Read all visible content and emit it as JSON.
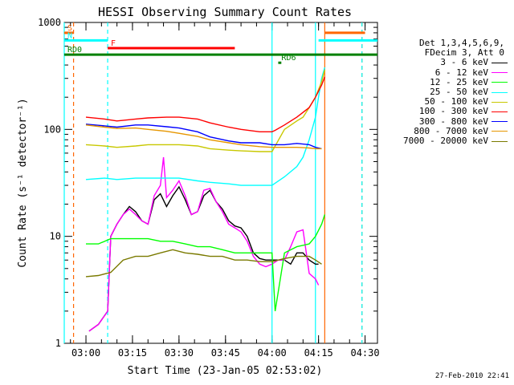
{
  "chart_data": {
    "type": "line",
    "title": "HESSI Observing Summary Count Rates",
    "xlabel": "Start Time (23-Jan-05 02:53:02)",
    "ylabel": "Count Rate (s⁻¹ detector⁻¹)",
    "y_scale": "log",
    "ylim": [
      1,
      1000
    ],
    "xlim": [
      "02:53",
      "04:34"
    ],
    "x_ticks": [
      "03:00",
      "03:15",
      "03:30",
      "03:45",
      "04:00",
      "04:15",
      "04:30"
    ],
    "y_ticks": [
      "1",
      "10",
      "100",
      "1000"
    ],
    "grid": false,
    "legend_position": "right",
    "legend_header": [
      "Det 1,3,4,5,6,9,",
      "FDecim 3, Att 0"
    ],
    "series": [
      {
        "name": "3 - 6 keV",
        "color": "#000000",
        "x": [
          "03:01",
          "03:04",
          "03:07",
          "03:08",
          "03:10",
          "03:12",
          "03:14",
          "03:16",
          "03:18",
          "03:20",
          "03:22",
          "03:24",
          "03:26",
          "03:28",
          "03:30",
          "03:32",
          "03:34",
          "03:36",
          "03:38",
          "03:40",
          "03:42",
          "03:44",
          "03:46",
          "03:48",
          "03:50",
          "03:52",
          "03:54",
          "03:56",
          "03:58",
          "04:00",
          "04:02",
          "04:04",
          "04:06",
          "04:08",
          "04:10",
          "04:12",
          "04:14",
          "04:15"
        ],
        "y": [
          1.3,
          1.5,
          2.0,
          10,
          13,
          16,
          19,
          17,
          14,
          13,
          22,
          25,
          19,
          24,
          29,
          22,
          16,
          17,
          24,
          27,
          21,
          18,
          14,
          12.5,
          12,
          10,
          7,
          6.2,
          6.0,
          6.0,
          6.0,
          6.0,
          5.5,
          7,
          7,
          6.0,
          5.5,
          5.5
        ]
      },
      {
        "name": "6 - 12 keV",
        "color": "#ff00ff",
        "x": [
          "03:01",
          "03:04",
          "03:07",
          "03:08",
          "03:10",
          "03:12",
          "03:14",
          "03:16",
          "03:18",
          "03:20",
          "03:22",
          "03:24",
          "03:25",
          "03:26",
          "03:28",
          "03:30",
          "03:32",
          "03:34",
          "03:36",
          "03:38",
          "03:40",
          "03:42",
          "03:44",
          "03:46",
          "03:48",
          "03:50",
          "03:52",
          "03:54",
          "03:56",
          "03:58",
          "04:00",
          "04:02",
          "04:04",
          "04:06",
          "04:08",
          "04:10",
          "04:12",
          "04:14",
          "04:15"
        ],
        "y": [
          1.3,
          1.5,
          2.0,
          10,
          13,
          16,
          18,
          16,
          14,
          13,
          24,
          30,
          55,
          23,
          27,
          33,
          24,
          16,
          17,
          27,
          28,
          21,
          17,
          13,
          12,
          11,
          9,
          6.5,
          5.5,
          5.2,
          5.5,
          6.0,
          6.0,
          8.0,
          11.0,
          11.5,
          4.5,
          4.0,
          3.5
        ]
      },
      {
        "name": "12 - 25 keV",
        "color": "#00ff00",
        "x": [
          "03:00",
          "03:04",
          "03:08",
          "03:12",
          "03:16",
          "03:20",
          "03:24",
          "03:28",
          "03:32",
          "03:36",
          "03:40",
          "03:44",
          "03:48",
          "03:52",
          "03:56",
          "04:00",
          "04:01",
          "04:04",
          "04:08",
          "04:12",
          "04:14",
          "04:16",
          "04:17"
        ],
        "y": [
          8.5,
          8.5,
          9.5,
          9.5,
          9.5,
          9.5,
          9.0,
          9.0,
          8.5,
          8.0,
          8.0,
          7.5,
          7.0,
          7.0,
          7.0,
          7.0,
          2.0,
          7.0,
          8.0,
          8.5,
          10.0,
          13,
          16
        ]
      },
      {
        "name": "25 - 50 keV",
        "color": "#00ffff",
        "x": [
          "03:00",
          "03:06",
          "03:10",
          "03:16",
          "03:20",
          "03:26",
          "03:30",
          "03:36",
          "03:40",
          "03:46",
          "03:50",
          "03:56",
          "04:00",
          "04:04",
          "04:08",
          "04:10",
          "04:12",
          "04:14",
          "04:15",
          "04:16",
          "04:17"
        ],
        "y": [
          34,
          35,
          34,
          35,
          35,
          35,
          35,
          33,
          32,
          31,
          30,
          30,
          30,
          36,
          45,
          55,
          80,
          130,
          200,
          300,
          380
        ]
      },
      {
        "name": "50 - 100 keV",
        "color": "#c8c800",
        "x": [
          "03:00",
          "03:06",
          "03:10",
          "03:16",
          "03:20",
          "03:26",
          "03:30",
          "03:36",
          "03:40",
          "03:46",
          "03:50",
          "03:56",
          "04:00",
          "04:04",
          "04:08",
          "04:10",
          "04:12",
          "04:14",
          "04:16",
          "04:17"
        ],
        "y": [
          72,
          70,
          68,
          70,
          72,
          72,
          72,
          70,
          66,
          64,
          63,
          62,
          62,
          100,
          120,
          130,
          160,
          200,
          280,
          360
        ]
      },
      {
        "name": "100 - 300 keV",
        "color": "#ff0000",
        "x": [
          "03:00",
          "03:06",
          "03:10",
          "03:16",
          "03:20",
          "03:26",
          "03:30",
          "03:36",
          "03:40",
          "03:46",
          "03:50",
          "03:56",
          "04:00",
          "04:01",
          "04:04",
          "04:08",
          "04:12",
          "04:14",
          "04:16",
          "04:17"
        ],
        "y": [
          130,
          125,
          120,
          125,
          128,
          130,
          130,
          125,
          115,
          105,
          100,
          95,
          95,
          98,
          110,
          130,
          160,
          200,
          260,
          310
        ]
      },
      {
        "name": "300 - 800 keV",
        "color": "#0000ff",
        "x": [
          "03:00",
          "03:06",
          "03:10",
          "03:16",
          "03:20",
          "03:26",
          "03:30",
          "03:36",
          "03:40",
          "03:46",
          "03:50",
          "03:56",
          "04:00",
          "04:04",
          "04:08",
          "04:12",
          "04:14",
          "04:16"
        ],
        "y": [
          112,
          108,
          105,
          110,
          110,
          106,
          103,
          95,
          85,
          78,
          75,
          75,
          72,
          72,
          74,
          72,
          68,
          66
        ]
      },
      {
        "name": "800 - 7000 keV",
        "color": "#e69600",
        "x": [
          "03:00",
          "03:06",
          "03:10",
          "03:16",
          "03:20",
          "03:26",
          "03:30",
          "03:36",
          "03:40",
          "03:46",
          "03:50",
          "03:56",
          "04:00",
          "04:04",
          "04:08",
          "04:12",
          "04:14",
          "04:16"
        ],
        "y": [
          110,
          105,
          102,
          103,
          100,
          96,
          92,
          86,
          80,
          75,
          72,
          69,
          68,
          68,
          68,
          67,
          66,
          66
        ]
      },
      {
        "name": "7000 - 20000 keV",
        "color": "#7a7a00",
        "x": [
          "03:00",
          "03:04",
          "03:08",
          "03:12",
          "03:16",
          "03:20",
          "03:24",
          "03:28",
          "03:32",
          "03:36",
          "03:40",
          "03:44",
          "03:48",
          "03:52",
          "03:56",
          "04:00",
          "04:04",
          "04:08",
          "04:12",
          "04:14",
          "04:16"
        ],
        "y": [
          4.2,
          4.3,
          4.6,
          6.0,
          6.5,
          6.5,
          7.0,
          7.5,
          7.0,
          6.8,
          6.5,
          6.5,
          6.0,
          6.0,
          5.8,
          5.8,
          6.2,
          6.5,
          6.5,
          6.0,
          5.5
        ]
      }
    ],
    "annotations": [
      {
        "label": "S",
        "color": "#ff6600",
        "x_start": "02:53",
        "x_end": "02:56",
        "y": 800
      },
      {
        "label": "N",
        "color": "#00ffff",
        "x_start": "02:53",
        "x_end": "03:07",
        "y": 680
      },
      {
        "label": "F",
        "color": "#ff0000",
        "x_start": "03:07",
        "x_end": "03:48",
        "y": 575
      },
      {
        "label": "RD0",
        "color": "#008000",
        "x_start": "02:53",
        "x_end": "04:34",
        "y": 500
      },
      {
        "label": "RD6",
        "color": "#008000",
        "x_start": "04:02",
        "x_end": "04:03",
        "y": 420
      },
      {
        "label": "",
        "color": "#ff6600",
        "x_start": "04:17",
        "x_end": "04:30",
        "y": 800
      },
      {
        "label": "",
        "color": "#00ffff",
        "x_start": "04:15",
        "x_end": "04:34",
        "y": 680
      }
    ],
    "vertical_markers": [
      {
        "x": "02:53",
        "color": "#00ffff",
        "style": "solid"
      },
      {
        "x": "02:56",
        "color": "#ff6600",
        "style": "dashed"
      },
      {
        "x": "03:07",
        "color": "#00ffff",
        "style": "dashed"
      },
      {
        "x": "04:00",
        "color": "#00ffff",
        "style": "solid"
      },
      {
        "x": "04:14",
        "color": "#00ffff",
        "style": "solid"
      },
      {
        "x": "04:17",
        "color": "#ff6600",
        "style": "solid"
      },
      {
        "x": "04:29",
        "color": "#ff6600",
        "style": "dashed"
      },
      {
        "x": "04:29",
        "color": "#00ffff",
        "style": "dashed"
      }
    ]
  },
  "footer": {
    "timestamp": "27-Feb-2010 22:41"
  }
}
